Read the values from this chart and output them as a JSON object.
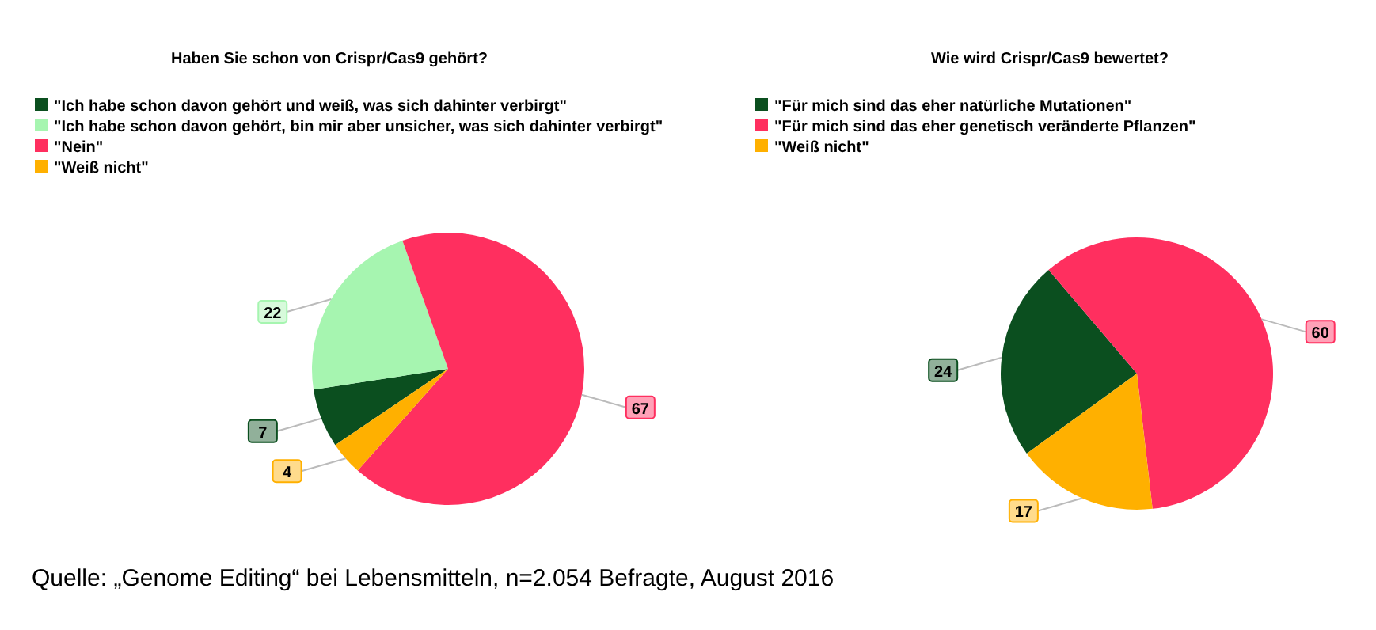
{
  "chart_data": [
    {
      "type": "pie",
      "title": "Haben Sie schon von Crispr/Cas9 gehört?",
      "categories": [
        "\"Ich habe schon davon gehört und weiß, was sich dahinter verbirgt\"",
        "\"Ich habe schon davon gehört, bin mir aber unsicher, was sich dahinter verbirgt\"",
        "\"Nein\"",
        "\"Weiß nicht\""
      ],
      "values": [
        7,
        22,
        67,
        4
      ],
      "colors": [
        "#0b4f1f",
        "#a6f5b0",
        "#ff2f5f",
        "#ffb000"
      ],
      "data_labels": true,
      "legend": "top left",
      "annotations": [
        "Quelle: „Genome Editing“ bei Lebensmitteln, n=2.054 Befragte, August 2016"
      ]
    },
    {
      "type": "pie",
      "title": "Wie wird Crispr/Cas9 bewertet?",
      "categories": [
        "\"Für mich sind das eher natürliche Mutationen\"",
        "\"Für mich sind das eher genetisch veränderte Pflanzen\"",
        "\"Weiß nicht\""
      ],
      "values": [
        24,
        60,
        17
      ],
      "colors": [
        "#0b4f1f",
        "#ff2f5f",
        "#ffb000"
      ],
      "data_labels": true,
      "legend": "top left"
    }
  ]
}
